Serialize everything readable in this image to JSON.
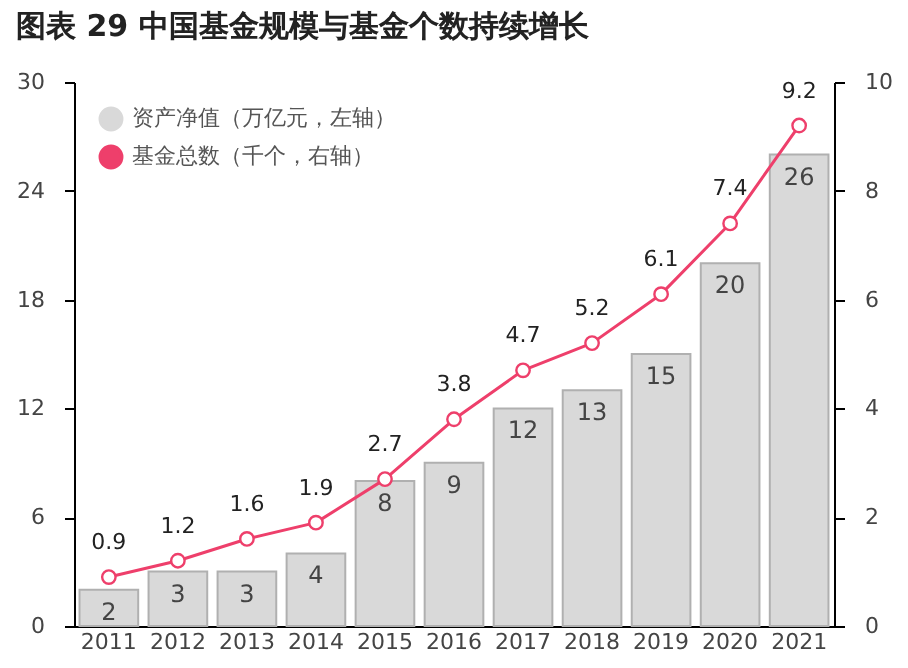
{
  "chart_data": {
    "type": "bar",
    "title": "图表 29 中国基金规模与基金个数持续增长",
    "categories": [
      "2011",
      "2012",
      "2013",
      "2014",
      "2015",
      "2016",
      "2017",
      "2018",
      "2019",
      "2020",
      "2021"
    ],
    "series": [
      {
        "name": "资产净值（万亿元，左轴）",
        "color": "#d9d9d9",
        "values": [
          2,
          3,
          3,
          4,
          8,
          9,
          12,
          13,
          15,
          20,
          26
        ]
      },
      {
        "name": "基金总数（千个，右轴）",
        "type": "line",
        "axis": "y2",
        "color": "#ee3f6b",
        "values": [
          0.9,
          1.2,
          1.6,
          1.9,
          2.7,
          3.8,
          4.7,
          5.2,
          6.1,
          7.4,
          9.2
        ]
      }
    ],
    "ylim": [
      0,
      30
    ],
    "yticks": [
      0,
      6,
      12,
      18,
      24,
      30
    ],
    "y2lim": [
      0,
      10
    ],
    "y2ticks": [
      0,
      2,
      4,
      6,
      8,
      10
    ],
    "data_labels": true,
    "legend": "top left",
    "marker": "circle",
    "grid": false
  }
}
